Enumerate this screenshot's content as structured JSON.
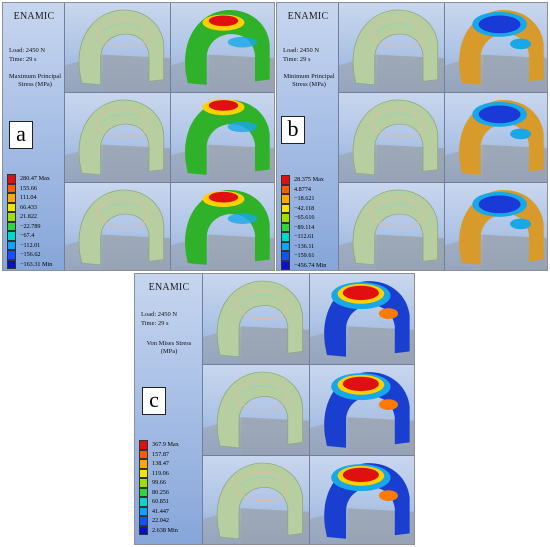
{
  "panels": [
    {
      "letter": "a",
      "title": "ENAMIC",
      "load": "Load: 2450 N",
      "time": "Time: 29 s",
      "stress_label": "Maximum Principal Stress (MPa)",
      "legend_values": [
        "280.47 Max",
        "155.66",
        "111.04",
        "66.433",
        "21.822",
        "−22.789",
        "−67.4",
        "−112.01",
        "−156.62",
        "−163.31 Min"
      ],
      "contour_scheme": "green"
    },
    {
      "letter": "b",
      "title": "ENAMIC",
      "load": "Load: 2450 N",
      "time": "Time: 29 s",
      "stress_label": "Minimum Principal Stress (MPa)",
      "legend_values": [
        "28.375 Max",
        "4.8774",
        "−18.621",
        "−42.118",
        "−65.616",
        "−89.114",
        "−112.61",
        "−136.11",
        "−159.61",
        "−456.74 Min"
      ],
      "contour_scheme": "orange"
    },
    {
      "letter": "c",
      "title": "ENAMIC",
      "load": "Load: 2450 N",
      "time": "Time: 29 s",
      "stress_label": "Von Mises Stress (MPa)",
      "legend_values": [
        "367.9 Max",
        "157.87",
        "138.47",
        "119.06",
        "99.66",
        "80.256",
        "60.851",
        "41.447",
        "22.042",
        "2.638 Min"
      ],
      "contour_scheme": "blue"
    }
  ],
  "legend_colors": [
    "#e01010",
    "#ff5a00",
    "#ffa800",
    "#f2e600",
    "#9be000",
    "#2fd63a",
    "#00d8c8",
    "#00a8ff",
    "#1450ff",
    "#0a10c8"
  ],
  "model_colors": {
    "crown": "#b7cfa0",
    "crown_edge": "#e6b9a2",
    "tooth": "#9aa0a8",
    "green_body": "#2fb12a",
    "orange_body": "#d99a2c",
    "blue_body": "#1a3fd0",
    "hot": "#e01010",
    "warm": "#ffd000",
    "cool": "#18a8e8"
  }
}
